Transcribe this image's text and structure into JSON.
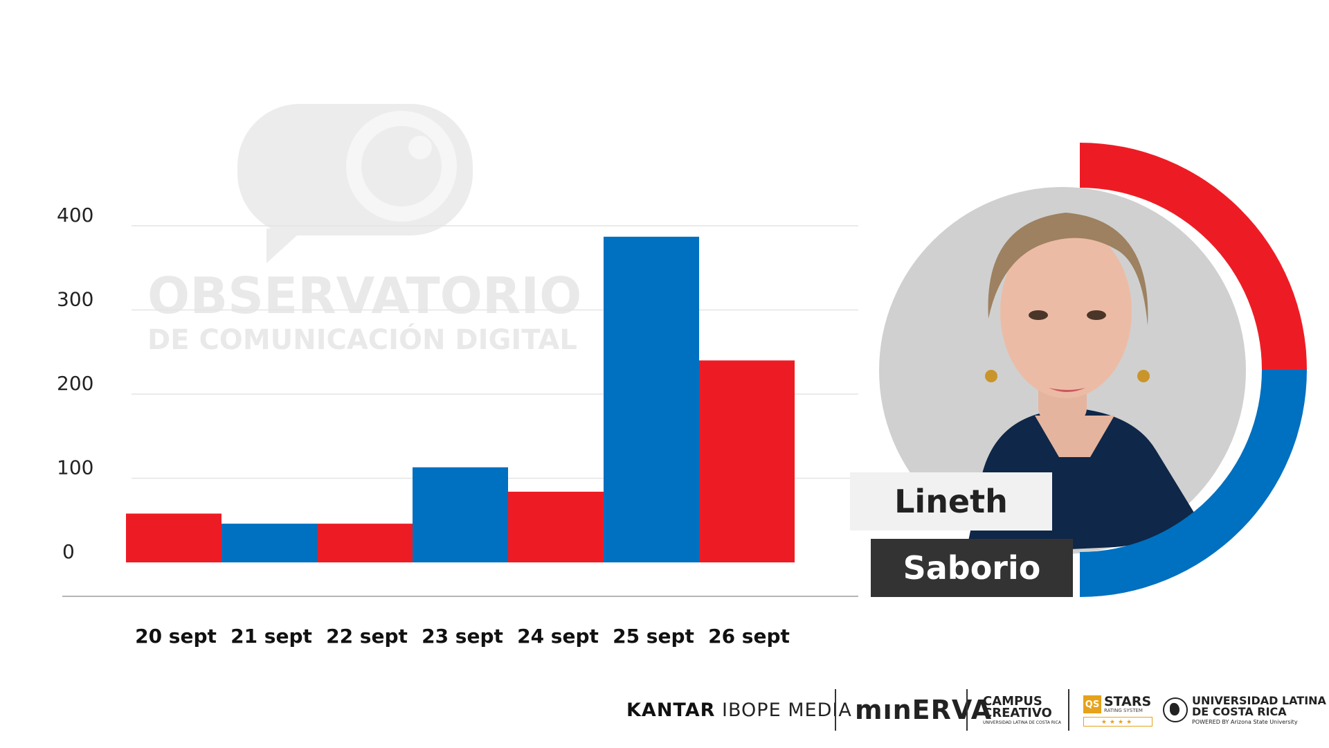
{
  "watermark": {
    "line1": "OBSERVATORIO",
    "line2": "DE COMUNICACIÓN DIGITAL",
    "icon": "speech-bubble-eye-icon"
  },
  "chart_data": {
    "type": "bar",
    "title": "",
    "xlabel": "",
    "ylabel": "",
    "categories": [
      "20 sept",
      "21 sept",
      "22 sept",
      "23 sept",
      "24 sept",
      "25 sept",
      "26 sept"
    ],
    "values": [
      58,
      46,
      46,
      113,
      84,
      387,
      240
    ],
    "bar_colors": [
      "#ed1c24",
      "#0070c0",
      "#ed1c24",
      "#0070c0",
      "#ed1c24",
      "#0070c0",
      "#ed1c24"
    ],
    "ylim": [
      0,
      400
    ],
    "yticks": [
      0,
      100,
      200,
      300,
      400
    ],
    "ytick_labels": [
      "0",
      "100",
      "200",
      "300",
      "400"
    ],
    "grid": true,
    "legend": "none"
  },
  "profile": {
    "first_name": "Lineth",
    "last_name": "Saborio",
    "ring_colors": {
      "top": "#ed1c24",
      "bottom": "#0070c0"
    },
    "photo_background": "#d0d0d0"
  },
  "logos": {
    "kantar_bold": "KANTAR",
    "kantar_rest": "IBOPE MEDIA",
    "minerva": "mınERVA",
    "campus_line1": "CAMPUS",
    "campus_line2": "CREATIVO",
    "campus_sub": "UNIVERSIDAD LATINA DE COSTA RICA",
    "qs_badge": "QS",
    "qs_stars": "STARS",
    "qs_sub": "RATING SYSTEM",
    "qs_rating": "★★★★",
    "ulatina_line1": "UNIVERSIDAD LATINA",
    "ulatina_line2": "DE COSTA RICA",
    "ulatina_sub": "POWERED BY Arizona State University"
  },
  "colors": {
    "red": "#ed1c24",
    "blue": "#0070c0",
    "dark": "#333333"
  }
}
